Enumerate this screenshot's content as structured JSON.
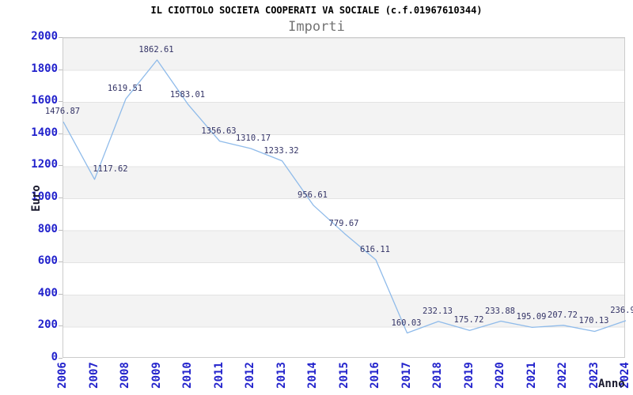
{
  "header": {
    "title": "IL CIOTTOLO SOCIETA COOPERATI VA SOCIALE (c.f.01967610344)",
    "subtitle": "Importi"
  },
  "axes": {
    "y_label": "Euro",
    "x_label": "Anno"
  },
  "chart_data": {
    "type": "line",
    "title": "IL CIOTTOLO SOCIETA COOPERATI VA SOCIALE (c.f.01967610344)",
    "subtitle": "Importi",
    "xlabel": "Anno",
    "ylabel": "Euro",
    "x": [
      2006,
      2007,
      2008,
      2009,
      2010,
      2011,
      2012,
      2013,
      2014,
      2015,
      2016,
      2017,
      2018,
      2019,
      2020,
      2021,
      2022,
      2023,
      2024
    ],
    "values": [
      1476.87,
      1117.62,
      1619.51,
      1862.61,
      1583.01,
      1356.63,
      1310.17,
      1233.32,
      956.61,
      779.67,
      616.11,
      160.03,
      232.13,
      175.72,
      233.88,
      195.09,
      207.72,
      170.13,
      236.9
    ],
    "point_labels": [
      "1476.87",
      "1117.62",
      "1619.51",
      "1862.61",
      "1583.01",
      "1356.63",
      "1310.17",
      "1233.32",
      "956.61",
      "779.67",
      "616.11",
      "160.03",
      "232.13",
      "175.72",
      "233.88",
      "195.09",
      "207.72",
      "170.13",
      "236.9"
    ],
    "ylim": [
      0,
      2000
    ],
    "ytick_step": 200,
    "grid": "horizontal-bands",
    "legend": "none",
    "colors": {
      "line": "#8fbbea",
      "tick_labels": "#2222cc",
      "point_labels": "#333366",
      "band": "#f3f3f3",
      "gridline": "#e3e3e3",
      "plot_border": "#cccccc",
      "title": "#000000",
      "subtitle": "#737373",
      "axis_titles": "#1a1a2e"
    },
    "label_offsets": {
      "1": [
        21,
        0
      ],
      "6": [
        4,
        0
      ],
      "18": [
        -3,
        0
      ]
    }
  }
}
